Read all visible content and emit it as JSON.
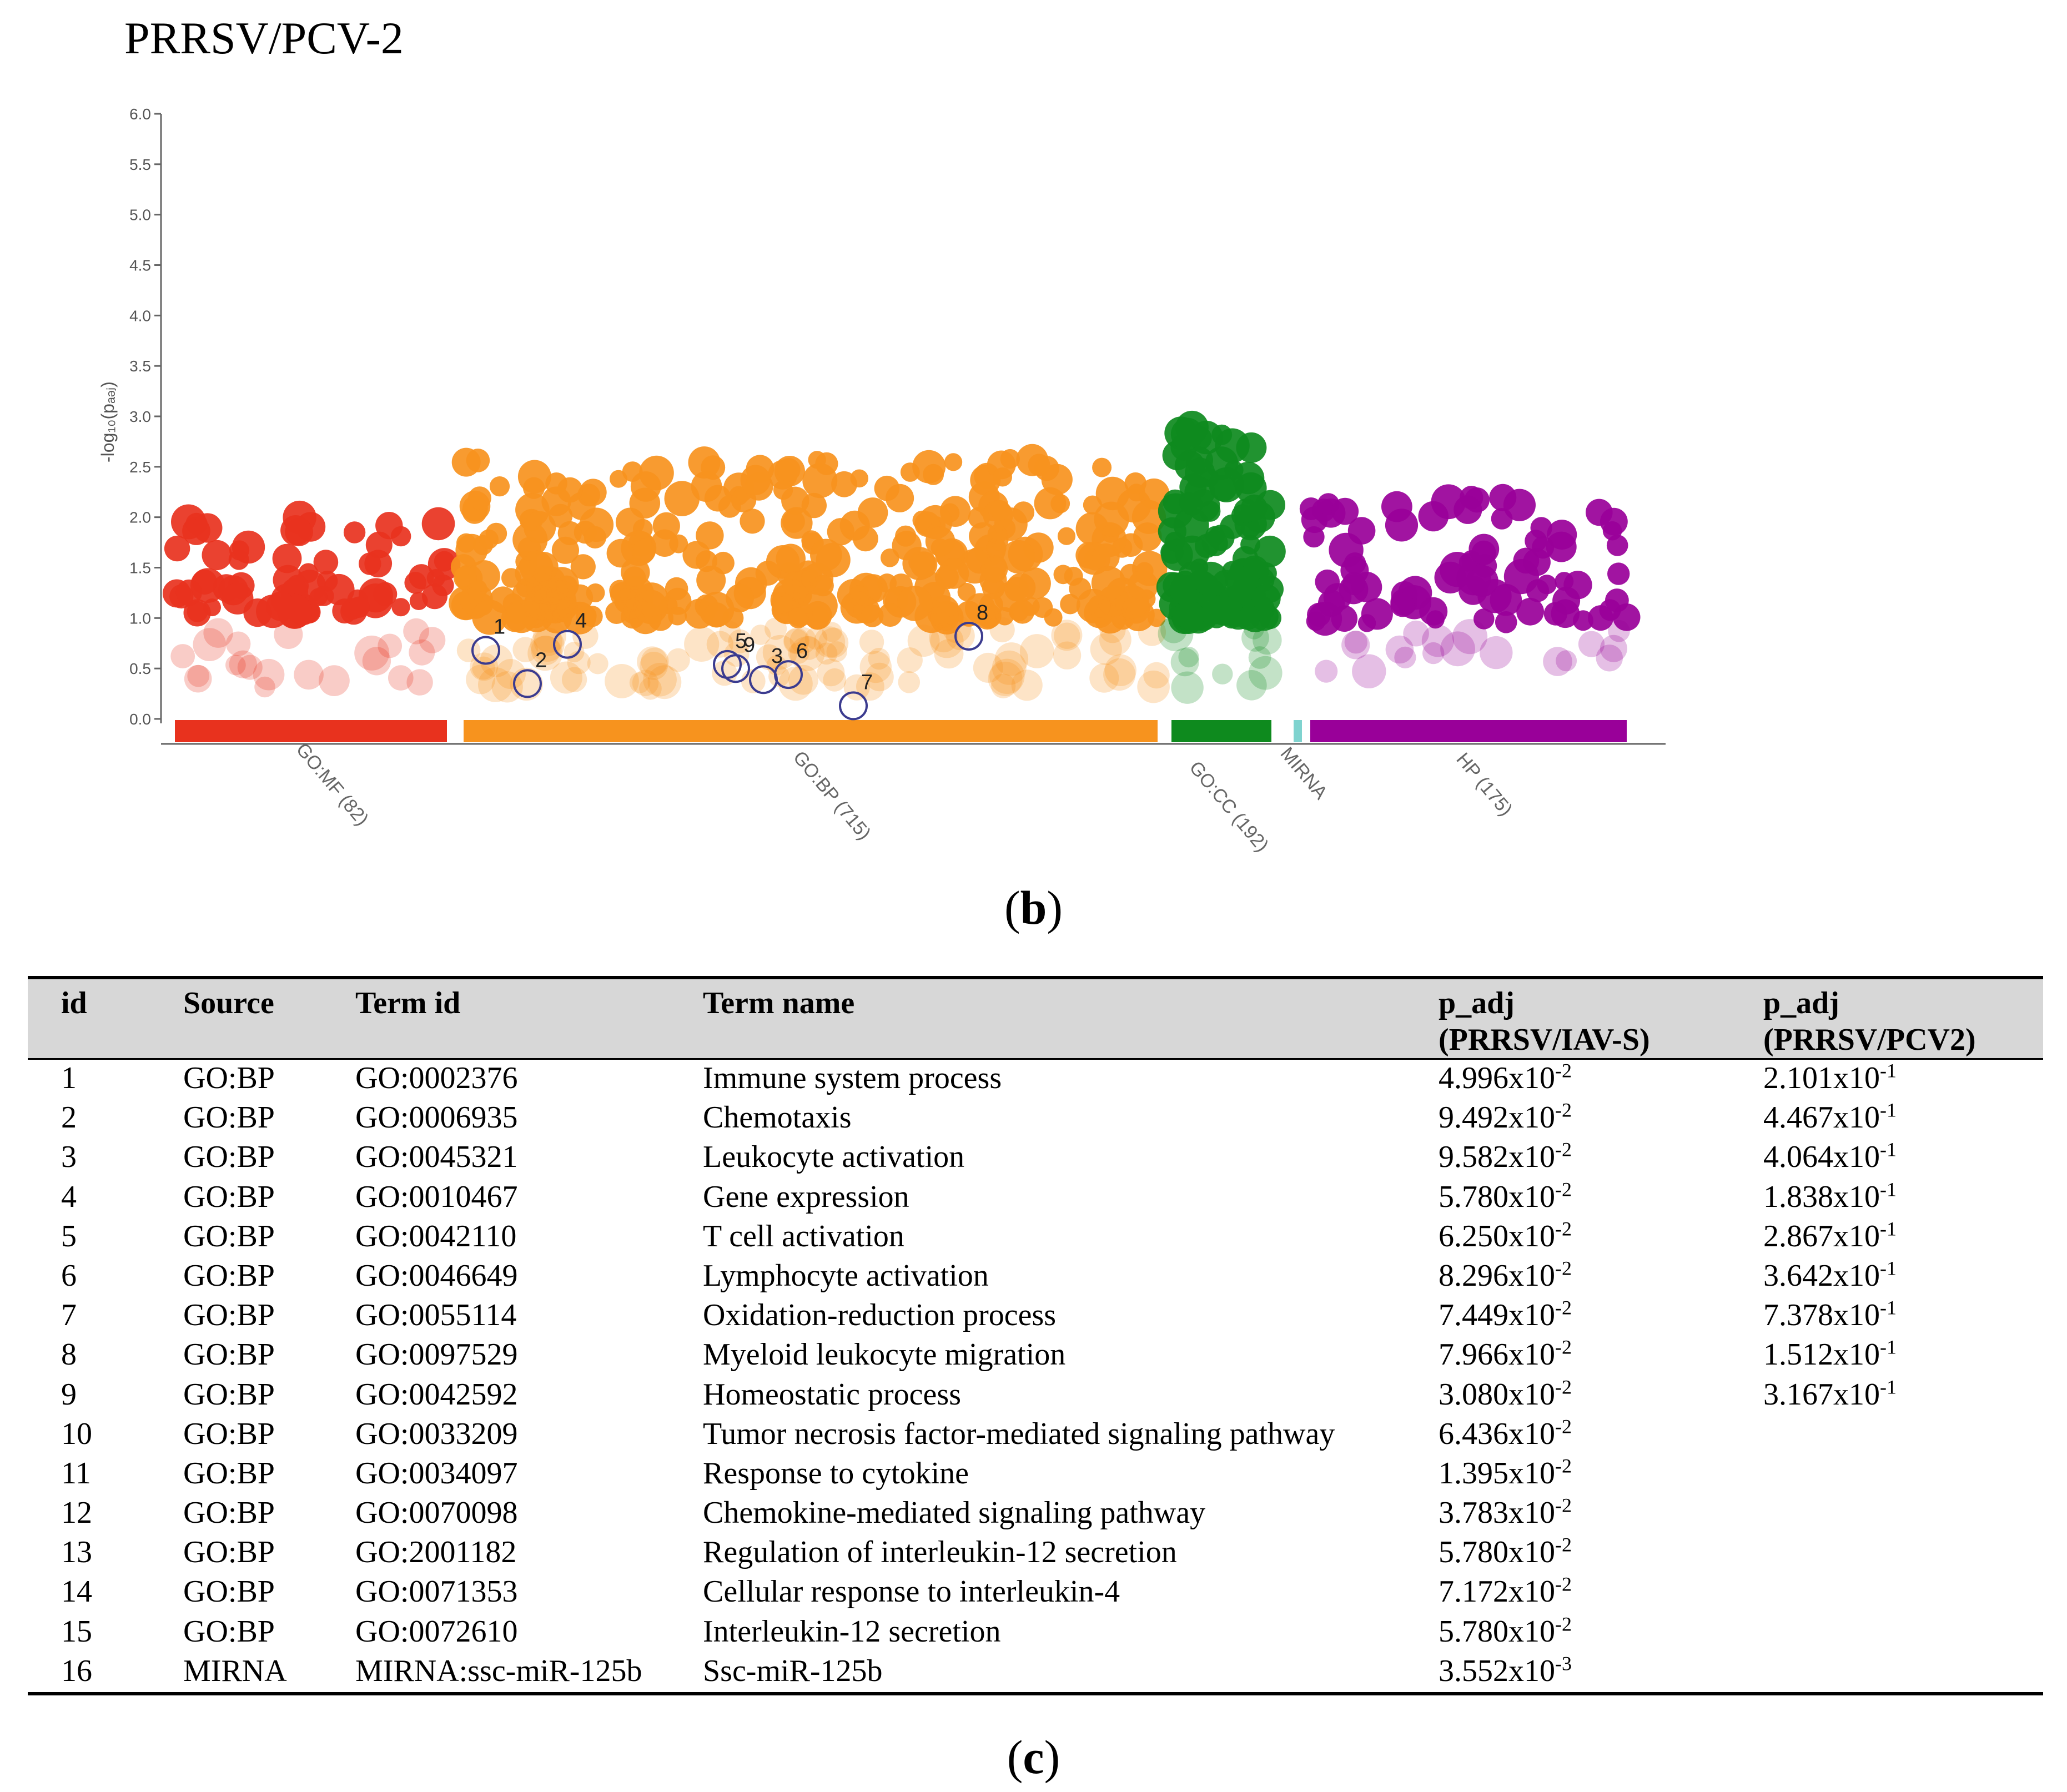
{
  "panel_title": "PRRSV/PCV-2",
  "captions": {
    "b": "b",
    "c": "c"
  },
  "chart_data": {
    "type": "scatter",
    "title": "PRRSV/PCV-2",
    "xlabel": "",
    "ylabel": "-log₁₀(pₐₔⱼ)",
    "ylim": [
      0,
      6.0
    ],
    "yticks": [
      "0.0",
      "0.5",
      "1.0",
      "1.5",
      "2.0",
      "2.5",
      "3.0",
      "3.5",
      "4.0",
      "4.5",
      "5.0",
      "5.5",
      "6.0"
    ],
    "categories": [
      {
        "label": "GO:MF (82)",
        "color": "#e8321e"
      },
      {
        "label": "GO:BP (715)",
        "color": "#f7931e"
      },
      {
        "label": "GO:CC (192)",
        "color": "#0e8a1e"
      },
      {
        "label": "MIRNA",
        "color": "#7fd3cf"
      },
      {
        "label": "HP (175)",
        "color": "#990099"
      }
    ],
    "highlighted_terms": [
      {
        "id": "1",
        "source": "GO:BP",
        "y": 0.68
      },
      {
        "id": "2",
        "source": "GO:BP",
        "y": 0.35
      },
      {
        "id": "3",
        "source": "GO:BP",
        "y": 0.39
      },
      {
        "id": "4",
        "source": "GO:BP",
        "y": 0.74
      },
      {
        "id": "5",
        "source": "GO:BP",
        "y": 0.54
      },
      {
        "id": "6",
        "source": "GO:BP",
        "y": 0.44
      },
      {
        "id": "7",
        "source": "GO:BP",
        "y": 0.13
      },
      {
        "id": "8",
        "source": "GO:BP",
        "y": 0.82
      },
      {
        "id": "9",
        "source": "GO:BP",
        "y": 0.5
      }
    ]
  },
  "table": {
    "headers": {
      "id": "id",
      "source": "Source",
      "term_id": "Term id",
      "term_name": "Term name",
      "p1_line1": "p_adj",
      "p1_line2": "(PRRSV/IAV-S)",
      "p2_line1": "p_adj",
      "p2_line2": "(PRRSV/PCV2)"
    },
    "rows": [
      {
        "id": "1",
        "source": "GO:BP",
        "term_id": "GO:0002376",
        "term_name": "Immune system process",
        "p1_mant": "4.996x10",
        "p1_exp": "-2",
        "p2_mant": "2.101x10",
        "p2_exp": "-1"
      },
      {
        "id": "2",
        "source": "GO:BP",
        "term_id": "GO:0006935",
        "term_name": "Chemotaxis",
        "p1_mant": "9.492x10",
        "p1_exp": "-2",
        "p2_mant": "4.467x10",
        "p2_exp": "-1"
      },
      {
        "id": "3",
        "source": "GO:BP",
        "term_id": "GO:0045321",
        "term_name": "Leukocyte activation",
        "p1_mant": "9.582x10",
        "p1_exp": "-2",
        "p2_mant": "4.064x10",
        "p2_exp": "-1"
      },
      {
        "id": "4",
        "source": "GO:BP",
        "term_id": "GO:0010467",
        "term_name": "Gene expression",
        "p1_mant": "5.780x10",
        "p1_exp": "-2",
        "p2_mant": "1.838x10",
        "p2_exp": "-1"
      },
      {
        "id": "5",
        "source": "GO:BP",
        "term_id": "GO:0042110",
        "term_name": "T cell activation",
        "p1_mant": "6.250x10",
        "p1_exp": "-2",
        "p2_mant": "2.867x10",
        "p2_exp": "-1"
      },
      {
        "id": "6",
        "source": "GO:BP",
        "term_id": "GO:0046649",
        "term_name": "Lymphocyte activation",
        "p1_mant": "8.296x10",
        "p1_exp": "-2",
        "p2_mant": "3.642x10",
        "p2_exp": "-1"
      },
      {
        "id": "7",
        "source": "GO:BP",
        "term_id": "GO:0055114",
        "term_name": "Oxidation-reduction process",
        "p1_mant": "7.449x10",
        "p1_exp": "-2",
        "p2_mant": "7.378x10",
        "p2_exp": "-1"
      },
      {
        "id": "8",
        "source": "GO:BP",
        "term_id": "GO:0097529",
        "term_name": "Myeloid leukocyte migration",
        "p1_mant": "7.966x10",
        "p1_exp": "-2",
        "p2_mant": "1.512x10",
        "p2_exp": "-1"
      },
      {
        "id": "9",
        "source": "GO:BP",
        "term_id": "GO:0042592",
        "term_name": "Homeostatic process",
        "p1_mant": "3.080x10",
        "p1_exp": "-2",
        "p2_mant": "3.167x10",
        "p2_exp": "-1"
      },
      {
        "id": "10",
        "source": "GO:BP",
        "term_id": "GO:0033209",
        "term_name": "Tumor necrosis factor-mediated signaling pathway",
        "p1_mant": "6.436x10",
        "p1_exp": "-2",
        "p2_mant": "",
        "p2_exp": ""
      },
      {
        "id": "11",
        "source": "GO:BP",
        "term_id": "GO:0034097",
        "term_name": "Response to cytokine",
        "p1_mant": "1.395x10",
        "p1_exp": "-2",
        "p2_mant": "",
        "p2_exp": ""
      },
      {
        "id": "12",
        "source": "GO:BP",
        "term_id": "GO:0070098",
        "term_name": "Chemokine-mediated signaling pathway",
        "p1_mant": "3.783x10",
        "p1_exp": "-2",
        "p2_mant": "",
        "p2_exp": ""
      },
      {
        "id": "13",
        "source": "GO:BP",
        "term_id": "GO:2001182",
        "term_name": "Regulation of interleukin-12 secretion",
        "p1_mant": "5.780x10",
        "p1_exp": "-2",
        "p2_mant": "",
        "p2_exp": ""
      },
      {
        "id": "14",
        "source": "GO:BP",
        "term_id": "GO:0071353",
        "term_name": "Cellular response to interleukin-4",
        "p1_mant": "7.172x10",
        "p1_exp": "-2",
        "p2_mant": "",
        "p2_exp": ""
      },
      {
        "id": "15",
        "source": "GO:BP",
        "term_id": "GO:0072610",
        "term_name": "Interleukin-12 secretion",
        "p1_mant": "5.780x10",
        "p1_exp": "-2",
        "p2_mant": "",
        "p2_exp": ""
      },
      {
        "id": "16",
        "source": "MIRNA",
        "term_id": "MIRNA:ssc-miR-125b",
        "term_name": "Ssc-miR-125b",
        "p1_mant": "3.552x10",
        "p1_exp": "-3",
        "p2_mant": "",
        "p2_exp": ""
      }
    ]
  }
}
